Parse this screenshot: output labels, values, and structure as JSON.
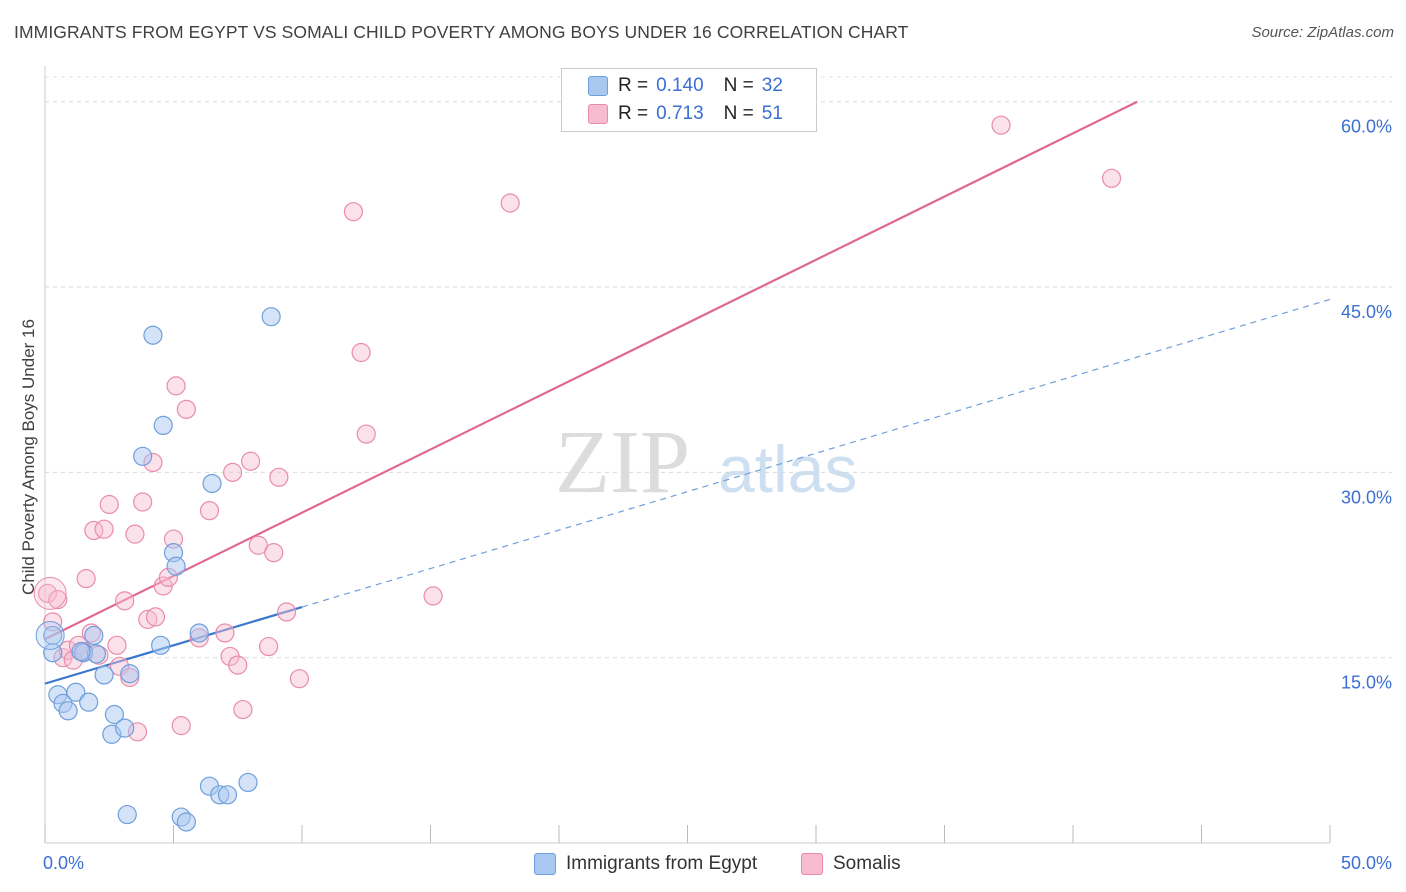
{
  "title": "IMMIGRANTS FROM EGYPT VS SOMALI CHILD POVERTY AMONG BOYS UNDER 16 CORRELATION CHART",
  "source": "Source: ZipAtlas.com",
  "watermark": {
    "zip": "ZIP",
    "atlas": "atlas"
  },
  "legend": {
    "rows": [
      {
        "r_label": "R =",
        "r_value": "0.140",
        "n_label": "N =",
        "n_value": "32"
      },
      {
        "r_label": "R =",
        "r_value": "0.713",
        "n_label": "N =",
        "n_value": "51"
      }
    ]
  },
  "bottom_legend": {
    "egypt": "Immigrants from Egypt",
    "somalis": "Somalis"
  },
  "colors": {
    "egypt_fill": "#a9c8f0",
    "egypt_stroke": "#6f9fdc",
    "egypt_line": "#3a78d0",
    "somali_fill": "#f7bcd0",
    "somali_stroke": "#e98cab",
    "somali_line": "#e0688f",
    "axis_text": "#3b6fd4"
  },
  "chart_data": {
    "type": "scatter",
    "title": "IMMIGRANTS FROM EGYPT VS SOMALI CHILD POVERTY AMONG BOYS UNDER 16 CORRELATION CHART",
    "xlabel": "",
    "ylabel": "Child Poverty Among Boys Under 16",
    "xlim": [
      0,
      50
    ],
    "ylim": [
      0,
      62
    ],
    "x_tick_labels": [
      "0.0%",
      "50.0%"
    ],
    "y_ticks": [
      15,
      30,
      45,
      60
    ],
    "y_tick_labels": [
      "15.0%",
      "30.0%",
      "45.0%",
      "60.0%"
    ],
    "series": [
      {
        "name": "Immigrants from Egypt",
        "r": 0.14,
        "n": 32,
        "points": [
          [
            0.3,
            16.8
          ],
          [
            0.3,
            15.4
          ],
          [
            0.5,
            12.0
          ],
          [
            0.7,
            11.3
          ],
          [
            0.9,
            10.7
          ],
          [
            1.2,
            12.2
          ],
          [
            1.5,
            15.4
          ],
          [
            1.7,
            11.4
          ],
          [
            1.9,
            16.8
          ],
          [
            2.0,
            15.3
          ],
          [
            2.3,
            13.6
          ],
          [
            2.7,
            10.4
          ],
          [
            2.6,
            8.8
          ],
          [
            3.1,
            9.3
          ],
          [
            3.3,
            13.7
          ],
          [
            3.8,
            31.3
          ],
          [
            4.2,
            41.1
          ],
          [
            4.5,
            16.0
          ],
          [
            4.6,
            33.8
          ],
          [
            5.0,
            23.5
          ],
          [
            5.1,
            22.4
          ],
          [
            3.2,
            2.3
          ],
          [
            5.3,
            2.1
          ],
          [
            5.5,
            1.7
          ],
          [
            6.0,
            17.0
          ],
          [
            6.5,
            29.1
          ],
          [
            6.4,
            4.6
          ],
          [
            6.8,
            3.9
          ],
          [
            7.1,
            3.9
          ],
          [
            7.9,
            4.9
          ],
          [
            8.8,
            42.6
          ],
          [
            1.4,
            15.5
          ]
        ],
        "trend_solid": [
          [
            0,
            12.9
          ],
          [
            10,
            19.1
          ]
        ],
        "trend_dashed": [
          [
            10,
            19.1
          ],
          [
            50,
            44.0
          ]
        ]
      },
      {
        "name": "Somalis",
        "r": 0.713,
        "n": 51,
        "points": [
          [
            0.1,
            20.2
          ],
          [
            0.3,
            17.9
          ],
          [
            0.5,
            19.7
          ],
          [
            0.7,
            15.0
          ],
          [
            0.9,
            15.6
          ],
          [
            1.1,
            14.8
          ],
          [
            1.3,
            16.0
          ],
          [
            1.5,
            15.5
          ],
          [
            1.6,
            21.4
          ],
          [
            1.8,
            17.0
          ],
          [
            1.9,
            25.3
          ],
          [
            2.1,
            15.2
          ],
          [
            2.3,
            25.4
          ],
          [
            2.5,
            27.4
          ],
          [
            2.8,
            16.0
          ],
          [
            2.9,
            14.3
          ],
          [
            3.1,
            19.6
          ],
          [
            3.3,
            13.4
          ],
          [
            3.5,
            25.0
          ],
          [
            3.6,
            9.0
          ],
          [
            3.8,
            27.6
          ],
          [
            4.0,
            18.1
          ],
          [
            4.2,
            30.8
          ],
          [
            4.3,
            18.3
          ],
          [
            4.6,
            20.8
          ],
          [
            4.8,
            21.5
          ],
          [
            5.0,
            24.6
          ],
          [
            5.1,
            37.0
          ],
          [
            5.3,
            9.5
          ],
          [
            5.5,
            35.1
          ],
          [
            6.0,
            16.6
          ],
          [
            6.4,
            26.9
          ],
          [
            7.0,
            17.0
          ],
          [
            7.2,
            15.1
          ],
          [
            7.3,
            30.0
          ],
          [
            7.5,
            14.4
          ],
          [
            7.7,
            10.8
          ],
          [
            8.0,
            30.9
          ],
          [
            8.3,
            24.1
          ],
          [
            8.7,
            15.9
          ],
          [
            8.9,
            23.5
          ],
          [
            9.1,
            29.6
          ],
          [
            9.4,
            18.7
          ],
          [
            9.9,
            13.3
          ],
          [
            12.0,
            51.1
          ],
          [
            12.3,
            39.7
          ],
          [
            12.5,
            33.1
          ],
          [
            15.1,
            20.0
          ],
          [
            18.1,
            51.8
          ],
          [
            37.2,
            58.1
          ],
          [
            41.5,
            53.8
          ]
        ],
        "trend_solid": [
          [
            0,
            16.5
          ],
          [
            42.5,
            60.0
          ]
        ]
      }
    ]
  }
}
